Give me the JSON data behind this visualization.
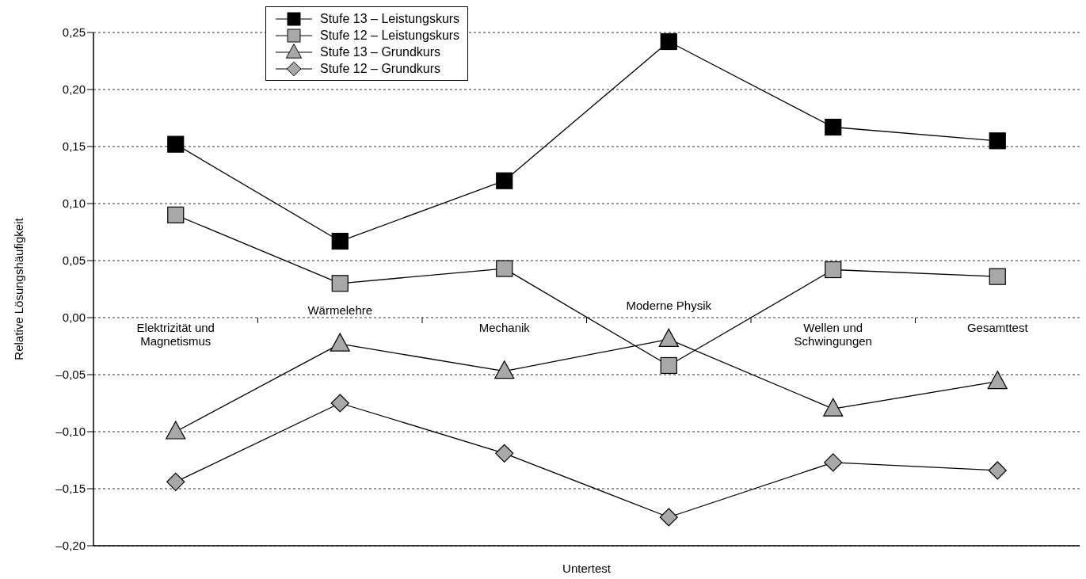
{
  "chart_data": {
    "type": "line",
    "xlabel": "Untertest",
    "ylabel": "Relative Lösungshäufigkeit",
    "categories": [
      "Elektrizität und Magnetismus",
      "Wärmelehre",
      "Mechanik",
      "Moderne Physik",
      "Wellen und Schwingungen",
      "Gesamttest"
    ],
    "series": [
      {
        "name": "Stufe 13 – Leistungskurs",
        "color": "#000000",
        "marker": "square",
        "values": [
          0.152,
          0.067,
          0.12,
          0.242,
          0.167,
          0.155
        ]
      },
      {
        "name": "Stufe 12 – Leistungskurs",
        "color": "#a8a8a8",
        "marker": "square",
        "values": [
          0.09,
          0.03,
          0.043,
          -0.042,
          0.042,
          0.036
        ]
      },
      {
        "name": "Stufe 13 – Grundkurs",
        "color": "#a8a8a8",
        "marker": "triangle",
        "values": [
          -0.1,
          -0.023,
          -0.047,
          -0.019,
          -0.08,
          -0.056
        ]
      },
      {
        "name": "Stufe 12 – Grundkurs",
        "color": "#a8a8a8",
        "marker": "diamond",
        "values": [
          -0.144,
          -0.075,
          -0.119,
          -0.175,
          -0.127,
          -0.134
        ]
      }
    ],
    "ylim": [
      -0.2,
      0.25
    ],
    "yticks": [
      {
        "value": -0.2,
        "label": "–0,20"
      },
      {
        "value": -0.15,
        "label": "–0,15"
      },
      {
        "value": -0.1,
        "label": "–0,10"
      },
      {
        "value": -0.05,
        "label": "–0,05"
      },
      {
        "value": 0,
        "label": "0,00"
      },
      {
        "value": 0.05,
        "label": "0,05"
      },
      {
        "value": 0.1,
        "label": "0,10"
      },
      {
        "value": 0.15,
        "label": "0,15"
      },
      {
        "value": 0.2,
        "label": "0,20"
      },
      {
        "value": 0.25,
        "label": "0,25"
      }
    ],
    "grid": "y",
    "legend": "top",
    "line_style": "solid"
  }
}
